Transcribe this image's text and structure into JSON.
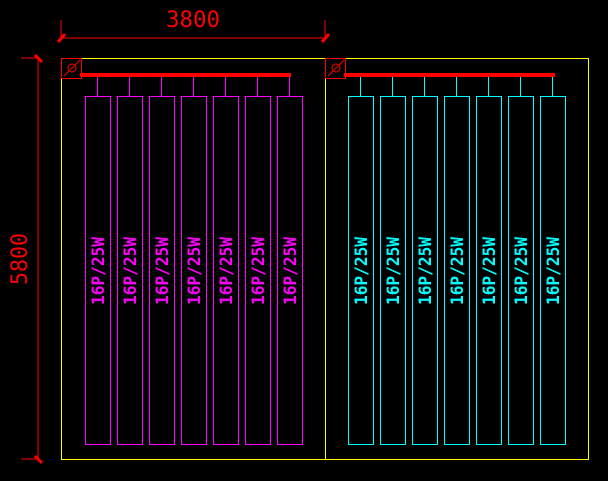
{
  "dimensions": {
    "width_label": "3800",
    "height_label": "5800"
  },
  "colors": {
    "dimension": "#ff0000",
    "room_outline": "#ffff00",
    "left_group": "#ff00ff",
    "right_group": "#00ffff",
    "header_pipe": "#ff0000"
  },
  "groups": [
    {
      "name": "left",
      "color": "#ff00ff",
      "panels": [
        "16P/25W",
        "16P/25W",
        "16P/25W",
        "16P/25W",
        "16P/25W",
        "16P/25W",
        "16P/25W"
      ]
    },
    {
      "name": "right",
      "color": "#00ffff",
      "panels": [
        "16P/25W",
        "16P/25W",
        "16P/25W",
        "16P/25W",
        "16P/25W",
        "16P/25W",
        "16P/25W"
      ]
    }
  ],
  "icons": {
    "symbol": "diameter-symbol-icon"
  }
}
